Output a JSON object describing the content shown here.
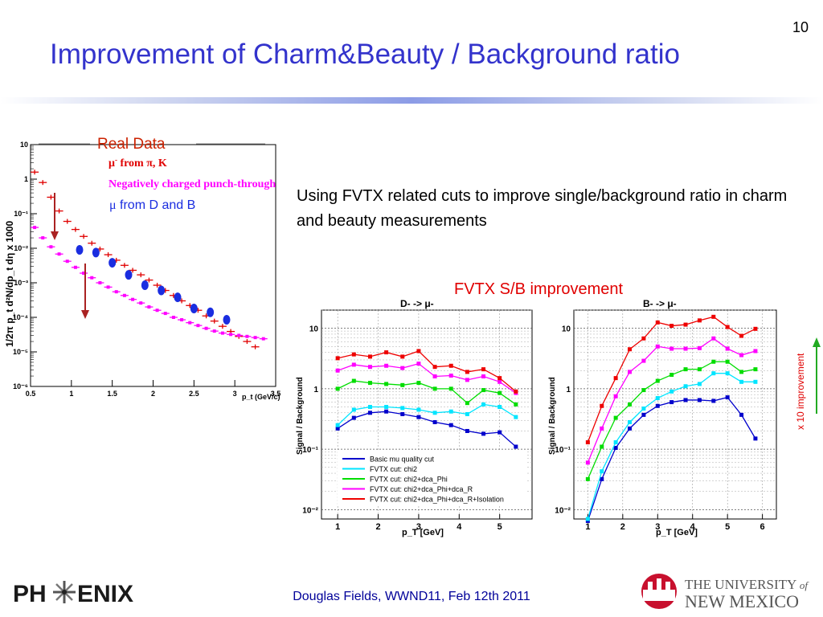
{
  "slide": {
    "number": "10",
    "title": "Improvement of Charm&Beauty / Background ratio",
    "intro_text": "Using FVTX related cuts to improve single/background ratio in charm and beauty measurements",
    "fvtx_label": "FVTX S/B improvement",
    "improvement_label": "x 10 improvement",
    "footer": "Douglas Fields, WWND11, Feb 12th 2011"
  },
  "logos": {
    "phenix": {
      "part1": "PH",
      "part2": "ENIX"
    },
    "unm": {
      "line1_a": "THE UNIVERSITY",
      "line1_b": "of",
      "line2": "NEW MEXICO"
    }
  },
  "colors": {
    "title": "#3333cc",
    "red": "#e00000",
    "magenta": "#ff00ff",
    "blue_points": "#1a2de0",
    "arrow_green": "#22aa22",
    "arrow_red": "#aa2222"
  },
  "chart_data": [
    {
      "type": "scatter",
      "xlabel": "p_t (GeV/c)",
      "ylabel": "1/2π p_t d²N/dp_t dη x 1000",
      "xlim": [
        0.5,
        3.5
      ],
      "ylim": [
        1e-06,
        10
      ],
      "log_y": true,
      "x_ticks": [
        "0.5",
        "1",
        "1.5",
        "2",
        "2.5",
        "3",
        "3.5"
      ],
      "y_ticks": [
        "10",
        "1",
        "10⁻¹",
        "10⁻²",
        "10⁻³",
        "10⁻⁴",
        "10⁻⁵",
        "10⁻⁶"
      ],
      "legend_box_label": "Real Data",
      "legend": [
        {
          "prefix": "μ",
          "sup": "-",
          "text": " from π, K"
        },
        {
          "text": "Negatively charged punch-through"
        },
        {
          "prefix": "μ",
          "text": " from D and B"
        }
      ],
      "series": [
        {
          "name": "μ- from π, K",
          "x": [
            0.55,
            0.65,
            0.75,
            0.85,
            0.95,
            1.05,
            1.15,
            1.25,
            1.35,
            1.45,
            1.55,
            1.65,
            1.75,
            1.85,
            1.95,
            2.05,
            2.15,
            2.25,
            2.35,
            2.45,
            2.55,
            2.65,
            2.75,
            2.85,
            2.95,
            3.05,
            3.15,
            3.25
          ],
          "y": [
            1.6,
            0.8,
            0.3,
            0.12,
            0.06,
            0.035,
            0.022,
            0.014,
            0.0095,
            0.0065,
            0.0045,
            0.0032,
            0.0023,
            0.0017,
            0.0012,
            0.00085,
            0.0006,
            0.00043,
            0.0003,
            0.00022,
            0.00016,
            0.00011,
            7.8e-05,
            5.5e-05,
            3.9e-05,
            2.8e-05,
            2e-05,
            1.4e-05
          ]
        },
        {
          "name": "Negatively charged punch-through",
          "x": [
            0.55,
            0.65,
            0.75,
            0.85,
            0.95,
            1.05,
            1.15,
            1.25,
            1.35,
            1.45,
            1.55,
            1.65,
            1.75,
            1.85,
            1.95,
            2.05,
            2.15,
            2.25,
            2.35,
            2.45,
            2.55,
            2.65,
            2.75,
            2.85,
            2.95,
            3.05,
            3.15,
            3.25,
            3.35
          ],
          "y": [
            0.04,
            0.02,
            0.011,
            0.0068,
            0.0042,
            0.0028,
            0.0019,
            0.0014,
            0.001,
            0.00075,
            0.00055,
            0.00043,
            0.00033,
            0.00026,
            0.0002,
            0.00016,
            0.00013,
            0.0001,
            8.5e-05,
            7e-05,
            5.8e-05,
            4.8e-05,
            4e-05,
            3.5e-05,
            3.2e-05,
            3e-05,
            2.8e-05,
            2.6e-05,
            2.4e-05
          ]
        },
        {
          "name": "μ from D and B",
          "x": [
            1.1,
            1.3,
            1.5,
            1.7,
            1.9,
            2.1,
            2.3,
            2.5,
            2.7,
            2.9
          ],
          "y": [
            0.009,
            0.0075,
            0.0038,
            0.0017,
            0.00085,
            0.0006,
            0.00038,
            0.00018,
            0.00014,
            8.5e-05
          ]
        }
      ]
    },
    {
      "type": "line",
      "title": "D- -> μ-",
      "xlabel": "p_T [GeV]",
      "ylabel": "Signal / Background",
      "xlim": [
        0.6,
        5.8
      ],
      "ylim": [
        0.007,
        20
      ],
      "log_y": true,
      "x_ticks": [
        "1",
        "2",
        "3",
        "4",
        "5"
      ],
      "y_ticks": [
        "10",
        "1",
        "10⁻¹",
        "10⁻²"
      ],
      "legend": [
        "Basic mu quality cut",
        "FVTX cut: chi2",
        "FVTX cut: chi2+dca_Phi",
        "FVTX cut: chi2+dca_Phi+dca_R",
        "FVTX cut: chi2+dca_Phi+dca_R+Isolation"
      ],
      "x": [
        1.0,
        1.4,
        1.8,
        2.2,
        2.6,
        3.0,
        3.4,
        3.8,
        4.2,
        4.6,
        5.0,
        5.4
      ],
      "series": [
        {
          "name": "Basic mu quality cut",
          "color": "#0000cc",
          "values": [
            0.22,
            0.33,
            0.4,
            0.42,
            0.38,
            0.34,
            0.28,
            0.25,
            0.2,
            0.18,
            0.19,
            0.11
          ]
        },
        {
          "name": "FVTX cut: chi2",
          "color": "#00e5ff",
          "values": [
            0.25,
            0.45,
            0.5,
            0.5,
            0.48,
            0.45,
            0.4,
            0.42,
            0.38,
            0.55,
            0.5,
            0.34
          ]
        },
        {
          "name": "FVTX cut: chi2+dca_Phi",
          "color": "#00dd00",
          "values": [
            1.0,
            1.35,
            1.25,
            1.2,
            1.15,
            1.25,
            1.0,
            1.0,
            0.58,
            0.95,
            0.85,
            0.55
          ]
        },
        {
          "name": "FVTX cut: chi2+dca_Phi+dca_R",
          "color": "#ff00ff",
          "values": [
            2.0,
            2.5,
            2.3,
            2.4,
            2.2,
            2.6,
            1.6,
            1.65,
            1.4,
            1.6,
            1.3,
            0.85
          ]
        },
        {
          "name": "FVTX cut: chi2+dca_Phi+dca_R+Isolation",
          "color": "#ee0000",
          "values": [
            3.2,
            3.7,
            3.4,
            4.0,
            3.4,
            4.2,
            2.3,
            2.4,
            1.9,
            2.1,
            1.5,
            0.9
          ]
        }
      ]
    },
    {
      "type": "line",
      "title": "B- -> μ-",
      "xlabel": "p_T [GeV]",
      "ylabel": "Signal / Background",
      "xlim": [
        0.6,
        6.4
      ],
      "ylim": [
        0.007,
        20
      ],
      "log_y": true,
      "x_ticks": [
        "1",
        "2",
        "3",
        "4",
        "5",
        "6"
      ],
      "y_ticks": [
        "10",
        "1",
        "10⁻¹",
        "10⁻²"
      ],
      "x": [
        1.0,
        1.4,
        1.8,
        2.2,
        2.6,
        3.0,
        3.4,
        3.8,
        4.2,
        4.6,
        5.0,
        5.4,
        5.8
      ],
      "series": [
        {
          "name": "Basic mu quality cut",
          "color": "#0000cc",
          "values": [
            0.0065,
            0.032,
            0.105,
            0.22,
            0.37,
            0.52,
            0.6,
            0.65,
            0.65,
            0.63,
            0.72,
            0.37,
            0.15
          ]
        },
        {
          "name": "FVTX cut: chi2",
          "color": "#00e5ff",
          "values": [
            0.007,
            0.043,
            0.13,
            0.28,
            0.47,
            0.7,
            0.9,
            1.1,
            1.2,
            1.8,
            1.8,
            1.3,
            1.3
          ]
        },
        {
          "name": "FVTX cut: chi2+dca_Phi",
          "color": "#00dd00",
          "values": [
            0.032,
            0.11,
            0.33,
            0.55,
            0.95,
            1.35,
            1.7,
            2.1,
            2.1,
            2.8,
            2.8,
            1.9,
            2.1
          ]
        },
        {
          "name": "FVTX cut: chi2+dca_Phi+dca_R",
          "color": "#ff00ff",
          "values": [
            0.06,
            0.22,
            0.75,
            1.9,
            2.9,
            5.0,
            4.6,
            4.6,
            4.7,
            6.8,
            4.6,
            3.6,
            4.2
          ]
        },
        {
          "name": "FVTX cut: chi2+dca_Phi+dca_R+Isolation",
          "color": "#ee0000",
          "values": [
            0.13,
            0.52,
            1.5,
            4.5,
            6.8,
            12.5,
            11.0,
            11.5,
            13.5,
            15.5,
            10.5,
            7.5,
            9.8
          ]
        }
      ]
    }
  ]
}
